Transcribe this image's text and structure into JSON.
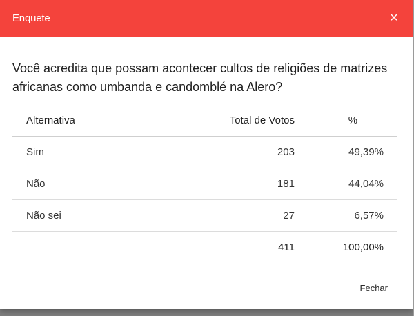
{
  "dialog": {
    "title": "Enquete",
    "close_icon": "×",
    "question": "Você acredita que possam acontecer cultos de religiões de matrizes africanas como umbanda e candomblé na Alero?",
    "close_label": "Fechar"
  },
  "table": {
    "headers": {
      "alternative": "Alternativa",
      "votes": "Total de Votos",
      "percent": "%"
    },
    "rows": [
      {
        "alternative": "Sim",
        "votes": "203",
        "percent": "49,39%"
      },
      {
        "alternative": "Não",
        "votes": "181",
        "percent": "44,04%"
      },
      {
        "alternative": "Não sei",
        "votes": "27",
        "percent": "6,57%"
      }
    ],
    "total": {
      "votes": "411",
      "percent": "100,00%"
    }
  },
  "colors": {
    "header_bg": "#f4433c",
    "header_text": "#ffffff"
  }
}
